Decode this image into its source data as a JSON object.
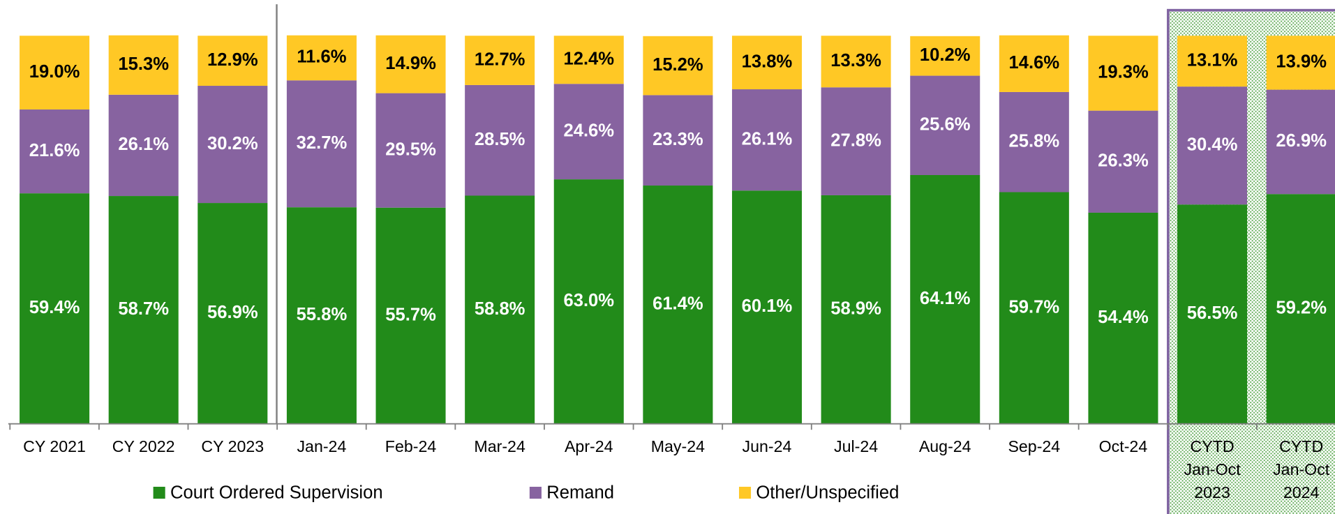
{
  "chart_data": {
    "type": "stacked_bar",
    "categories": [
      "CY 2021",
      "CY 2022",
      "CY 2023",
      "Jan-24",
      "Feb-24",
      "Mar-24",
      "Apr-24",
      "May-24",
      "Jun-24",
      "Jul-24",
      "Aug-24",
      "Sep-24",
      "Oct-24",
      "CYTD Jan-Oct 2023",
      "CYTD Jan-Oct 2024"
    ],
    "ylim": [
      0,
      100
    ],
    "series": [
      {
        "name": "Court Ordered Supervision",
        "color": "#228b1a",
        "values": [
          59.4,
          58.7,
          56.9,
          55.8,
          55.7,
          58.8,
          63.0,
          61.4,
          60.1,
          58.9,
          64.1,
          59.7,
          54.4,
          56.5,
          59.2
        ],
        "value_labels": [
          "59.4%",
          "58.7%",
          "56.9%",
          "55.8%",
          "55.7%",
          "58.8%",
          "63.0%",
          "61.4%",
          "60.1%",
          "58.9%",
          "64.1%",
          "59.7%",
          "54.4%",
          "56.5%",
          "59.2%"
        ]
      },
      {
        "name": "Remand",
        "color": "#8763a0",
        "values": [
          21.6,
          26.1,
          30.2,
          32.7,
          29.5,
          28.5,
          24.6,
          23.3,
          26.1,
          27.8,
          25.6,
          25.8,
          26.3,
          30.4,
          26.9
        ],
        "value_labels": [
          "21.6%",
          "26.1%",
          "30.2%",
          "32.7%",
          "29.5%",
          "28.5%",
          "24.6%",
          "23.3%",
          "26.1%",
          "27.8%",
          "25.6%",
          "25.8%",
          "26.3%",
          "30.4%",
          "26.9%"
        ]
      },
      {
        "name": "Other/Unspecified",
        "color": "#ffc825",
        "values": [
          19.0,
          15.3,
          12.9,
          11.6,
          14.9,
          12.7,
          12.4,
          15.2,
          13.8,
          13.3,
          10.2,
          14.6,
          19.3,
          13.1,
          13.9
        ],
        "value_labels": [
          "19.0%",
          "15.3%",
          "12.9%",
          "11.6%",
          "14.9%",
          "12.7%",
          "12.4%",
          "15.2%",
          "13.8%",
          "13.3%",
          "10.2%",
          "14.6%",
          "19.3%",
          "13.1%",
          "13.9%"
        ]
      }
    ]
  }
}
